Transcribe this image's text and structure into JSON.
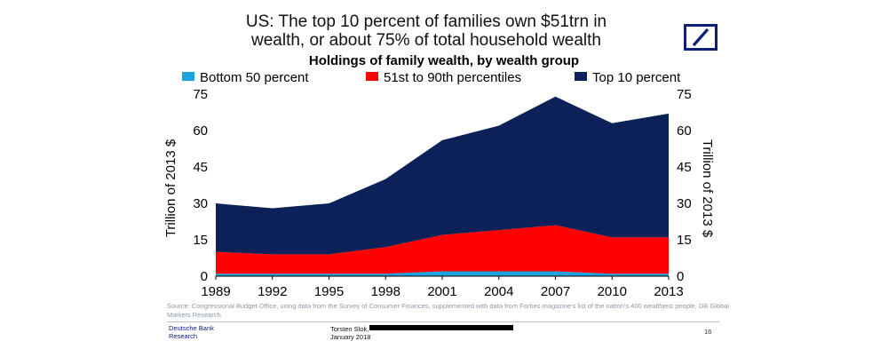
{
  "title_lines": [
    "US: The top 10 percent of families own $51trn in",
    "wealth, or about 75% of total household wealth"
  ],
  "logo": {
    "name": "deutsche-bank-logo",
    "color": "#0a1e7a"
  },
  "chart_data": {
    "type": "area",
    "stacked": true,
    "title": "Holdings of family wealth, by wealth group",
    "x": [
      "1989",
      "1992",
      "1995",
      "1998",
      "2001",
      "2004",
      "2007",
      "2010",
      "2013"
    ],
    "series": [
      {
        "name": "Bottom 50 percent",
        "color": "#1ba3e0",
        "values": [
          1,
          1,
          1,
          1,
          2,
          2,
          2,
          1,
          1
        ]
      },
      {
        "name": "51st to 90th percentiles",
        "color": "#ff0000",
        "values": [
          9,
          8,
          8,
          11,
          15,
          17,
          19,
          15,
          15
        ]
      },
      {
        "name": "Top 10 percent",
        "color": "#0b2158",
        "values": [
          20,
          19,
          21,
          28,
          39,
          43,
          53,
          47,
          51
        ]
      }
    ],
    "ylabel_left": "Trillion of 2013 $",
    "ylabel_right": "Trillion of 2013 $",
    "ylim": [
      0,
      75
    ],
    "yticks": [
      "0",
      "15",
      "30",
      "45",
      "60",
      "75"
    ],
    "legend_position": "top",
    "grid": false
  },
  "footer": {
    "source": "Source: Congressional Budget Office, using data from the Survey of Consumer Finances, supplemented with data from Forbes magazine's list of the nation's 400 wealthiest people, DB Global Markets Research",
    "brand_lines": [
      "Deutsche Bank",
      "Research"
    ],
    "author": "Torsten Slok,",
    "date": "January 2018",
    "page": "16"
  }
}
